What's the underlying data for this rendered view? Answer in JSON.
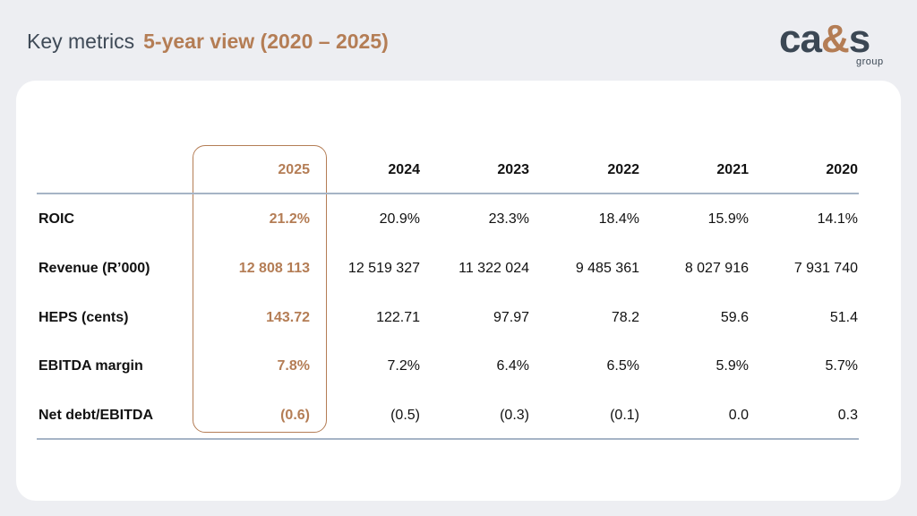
{
  "header": {
    "title": "Key metrics",
    "subtitle": "5-year view (2020 – 2025)"
  },
  "logo": {
    "text_part1": "ca",
    "text_amp": "&",
    "text_part2": "s",
    "tagline": "group"
  },
  "colors": {
    "accent": "#b47d55",
    "title_text": "#3f4a57",
    "background": "#edeef2",
    "rule": "#a6b4c6"
  },
  "table": {
    "highlight_year": "2025",
    "columns": [
      "2025",
      "2024",
      "2023",
      "2022",
      "2021",
      "2020"
    ],
    "rows": [
      {
        "label": "ROIC",
        "values": [
          "21.2%",
          "20.9%",
          "23.3%",
          "18.4%",
          "15.9%",
          "14.1%"
        ]
      },
      {
        "label": "Revenue (R’000)",
        "values": [
          "12 808 113",
          "12 519 327",
          "11 322 024",
          "9 485 361",
          "8 027 916",
          "7 931 740"
        ]
      },
      {
        "label": "HEPS (cents)",
        "values": [
          "143.72",
          "122.71",
          "97.97",
          "78.2",
          "59.6",
          "51.4"
        ]
      },
      {
        "label": "EBITDA margin",
        "values": [
          "7.8%",
          "7.2%",
          "6.4%",
          "6.5%",
          "5.9%",
          "5.7%"
        ]
      },
      {
        "label": "Net debt/EBITDA",
        "values": [
          "(0.6)",
          "(0.5)",
          "(0.3)",
          "(0.1)",
          "0.0",
          "0.3"
        ]
      }
    ]
  }
}
